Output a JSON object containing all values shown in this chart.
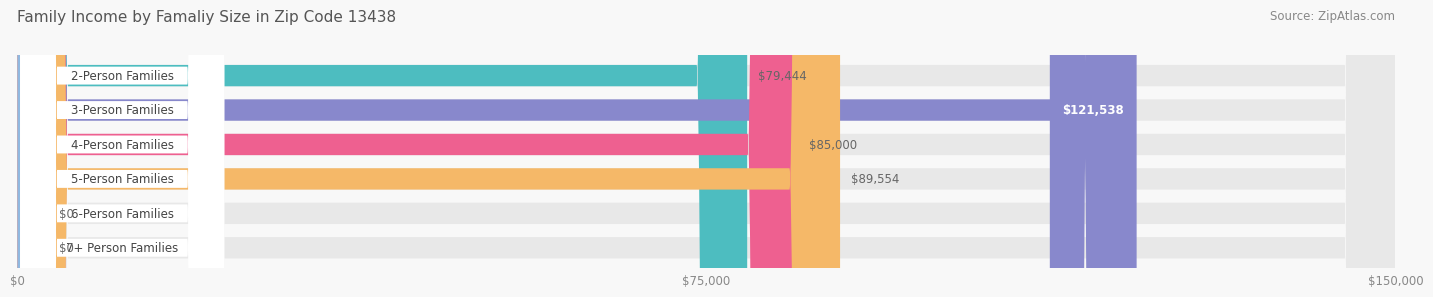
{
  "title": "Family Income by Famaliy Size in Zip Code 13438",
  "source": "Source: ZipAtlas.com",
  "categories": [
    "2-Person Families",
    "3-Person Families",
    "4-Person Families",
    "5-Person Families",
    "6-Person Families",
    "7+ Person Families"
  ],
  "values": [
    79444,
    121538,
    85000,
    89554,
    0,
    0
  ],
  "bar_colors": [
    "#4DBDC0",
    "#8888CC",
    "#EE6090",
    "#F5B868",
    "#F0A8A8",
    "#90B8E0"
  ],
  "value_labels": [
    "$79,444",
    "$121,538",
    "$85,000",
    "$89,554",
    "$0",
    "$0"
  ],
  "value_label_on_bar": [
    false,
    true,
    false,
    false,
    false,
    false
  ],
  "xlim": [
    0,
    150000
  ],
  "xticks": [
    0,
    75000,
    150000
  ],
  "xtick_labels": [
    "$0",
    "$75,000",
    "$150,000"
  ],
  "background_color": "#F8F8F8",
  "bar_bg_color": "#E8E8E8",
  "bar_height": 0.62,
  "title_fontsize": 11,
  "source_fontsize": 8.5,
  "label_fontsize": 8.5,
  "value_fontsize": 8.5
}
